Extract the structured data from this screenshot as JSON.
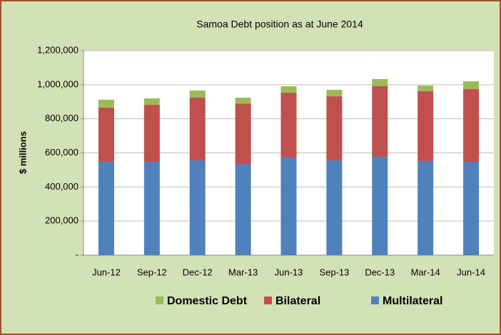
{
  "chart_data": {
    "type": "stacked_bar",
    "title": "Samoa Debt position as at June 2014",
    "y_label": "$ millions",
    "categories": [
      "Jun-12",
      "Sep-12",
      "Dec-12",
      "Mar-13",
      "Jun-13",
      "Sep-13",
      "Dec-13",
      "Mar-14",
      "Jun-14"
    ],
    "series": [
      {
        "name": "Multilateral",
        "color": "#4f81bd",
        "values": [
          548000,
          548000,
          556000,
          535000,
          573000,
          556000,
          577000,
          552000,
          548000
        ]
      },
      {
        "name": "Bilateral",
        "color": "#c0504d",
        "values": [
          318000,
          334000,
          368000,
          355000,
          380000,
          376000,
          414000,
          410000,
          426000
        ]
      },
      {
        "name": "Domestic Debt",
        "color": "#9bbb59",
        "values": [
          46000,
          38000,
          42000,
          34000,
          38000,
          38000,
          42000,
          33000,
          46000
        ]
      }
    ],
    "ylim": [
      0,
      1200000
    ],
    "yticks": [
      {
        "value": 0,
        "label": "-"
      },
      {
        "value": 200000,
        "label": "200,000"
      },
      {
        "value": 400000,
        "label": "400,000"
      },
      {
        "value": 600000,
        "label": "600,000"
      },
      {
        "value": 800000,
        "label": "800,000"
      },
      {
        "value": 1000000,
        "label": "1,000,000"
      },
      {
        "value": 1200000,
        "label": "1,200,000"
      }
    ],
    "grid": true,
    "legend": "bottom"
  }
}
